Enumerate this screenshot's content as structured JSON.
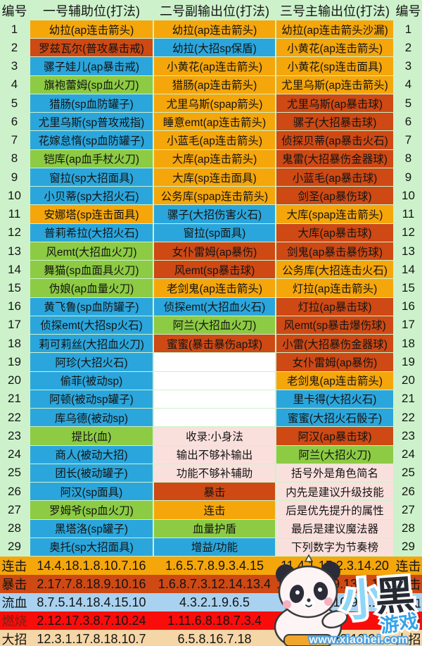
{
  "header": {
    "num_left": "编号",
    "col1": "一号辅助位(打法)",
    "col2": "二号副输出位(打法)",
    "col3": "三号主输出位(打法)",
    "num_right": "编号"
  },
  "colors": {
    "orange": "#F5A60B",
    "red": "#CE4914",
    "blue": "#2BA6DC",
    "green": "#8CCB43",
    "pink": "#FAE0DD",
    "white": "#FFFFFF",
    "lightblue": "#A9D2F0",
    "firered": "#F90D0B",
    "tan": "#F5D6A6",
    "page_bg": "#CDF2CB",
    "text": "#141414",
    "burn_label": "#7A2012"
  },
  "rows": [
    {
      "n": "1",
      "cells": [
        {
          "t": "幼拉(ap连击箭头)",
          "c": "orange"
        },
        {
          "t": "幼拉(ap连击箭头)",
          "c": "orange"
        },
        {
          "t": "幼拉(ap连击箭头沙漏)",
          "c": "orange"
        }
      ]
    },
    {
      "n": "2",
      "cells": [
        {
          "t": "罗兹瓦尔(普攻暴击戒)",
          "c": "red"
        },
        {
          "t": "幼拉(大招sp保盾)",
          "c": "blue"
        },
        {
          "t": "小黄花(ap连击箭头)",
          "c": "orange"
        }
      ]
    },
    {
      "n": "3",
      "cells": [
        {
          "t": "骡子娃儿(ap暴击戒)",
          "c": "blue"
        },
        {
          "t": "小黄花(ap连击箭头)",
          "c": "orange"
        },
        {
          "t": "小黄花(sp连击面具)",
          "c": "orange"
        }
      ]
    },
    {
      "n": "4",
      "cells": [
        {
          "t": "旗袍蕾姆(sp血火刀)",
          "c": "green"
        },
        {
          "t": "猎肠(ap连击箭头)",
          "c": "orange"
        },
        {
          "t": "尤里乌斯(ap连击箭头)",
          "c": "orange"
        }
      ]
    },
    {
      "n": "5",
      "cells": [
        {
          "t": "猎肠(sp血防罐子)",
          "c": "blue"
        },
        {
          "t": "尤里乌斯(spap箭头)",
          "c": "orange"
        },
        {
          "t": "尤里乌斯(ap暴击球)",
          "c": "red"
        }
      ]
    },
    {
      "n": "6",
      "cells": [
        {
          "t": "尤里乌斯(sp普攻戒指)",
          "c": "blue"
        },
        {
          "t": "睡意emt(ap连击箭头)",
          "c": "orange"
        },
        {
          "t": "骡子(大招暴击球)",
          "c": "red"
        }
      ]
    },
    {
      "n": "7",
      "cells": [
        {
          "t": "花嫁怠惰(sp血防罐子)",
          "c": "blue"
        },
        {
          "t": "小蓝毛(ap连击箭头)",
          "c": "orange"
        },
        {
          "t": "侦探贝蒂(ap暴击火石)",
          "c": "red"
        }
      ]
    },
    {
      "n": "8",
      "cells": [
        {
          "t": "铠库(ap血手杖火刀)",
          "c": "green"
        },
        {
          "t": "大库(ap连击箭头)",
          "c": "orange"
        },
        {
          "t": "鬼雷(大招暴伤金器球)",
          "c": "red"
        }
      ]
    },
    {
      "n": "9",
      "cells": [
        {
          "t": "窗拉(sp大招面具)",
          "c": "blue"
        },
        {
          "t": "大库(sp连击面具)",
          "c": "orange"
        },
        {
          "t": "小蓝毛(ap暴击球)",
          "c": "red"
        }
      ]
    },
    {
      "n": "10",
      "cells": [
        {
          "t": "小贝蒂(sp大招火石)",
          "c": "blue"
        },
        {
          "t": "公务库(spap连击箭头)",
          "c": "orange"
        },
        {
          "t": "剑圣(ap暴伤球)",
          "c": "red"
        }
      ]
    },
    {
      "n": "11",
      "cells": [
        {
          "t": "安娜塔(sp连击面具)",
          "c": "orange"
        },
        {
          "t": "骡子(大招伤害火石)",
          "c": "blue"
        },
        {
          "t": "大库(spap连击箭头)",
          "c": "orange"
        }
      ]
    },
    {
      "n": "12",
      "cells": [
        {
          "t": "普莉希拉(大招火石)",
          "c": "blue"
        },
        {
          "t": "窗拉(sp面具)",
          "c": "blue"
        },
        {
          "t": "大库(ap暴击球)",
          "c": "red"
        }
      ]
    },
    {
      "n": "13",
      "cells": [
        {
          "t": "风emt(大招血火刀)",
          "c": "green"
        },
        {
          "t": "女仆雷姆(ap暴伤)",
          "c": "red"
        },
        {
          "t": "剑鬼(ap暴击暴伤球)",
          "c": "red"
        }
      ]
    },
    {
      "n": "14",
      "cells": [
        {
          "t": "舞猫(sp血面具火刀)",
          "c": "green"
        },
        {
          "t": "风emt(sp暴击球)",
          "c": "red"
        },
        {
          "t": "公务库(大招连击火石)",
          "c": "orange"
        }
      ]
    },
    {
      "n": "15",
      "cells": [
        {
          "t": "伪娘(ap血量火刀)",
          "c": "green"
        },
        {
          "t": "老剑鬼(ap连击箭头)",
          "c": "orange"
        },
        {
          "t": "灯拉(ap连击箭头)",
          "c": "orange"
        }
      ]
    },
    {
      "n": "16",
      "cells": [
        {
          "t": "黄飞鲁(sp血防罐子)",
          "c": "blue"
        },
        {
          "t": "侦探emt(大招血火石)",
          "c": "blue"
        },
        {
          "t": "灯拉(ap暴击球)",
          "c": "red"
        }
      ]
    },
    {
      "n": "17",
      "cells": [
        {
          "t": "侦探emt(大招sp火石)",
          "c": "blue"
        },
        {
          "t": "阿兰(大招血火刀)",
          "c": "green"
        },
        {
          "t": "风emt(sp暴击爆伤球)",
          "c": "red"
        }
      ]
    },
    {
      "n": "18",
      "cells": [
        {
          "t": "莉可莉丝(大招血火刀)",
          "c": "blue"
        },
        {
          "t": "蜜蜜(暴击暴伤ap球)",
          "c": "red"
        },
        {
          "t": "小雷(大招暴伤金器球)",
          "c": "red"
        }
      ]
    },
    {
      "n": "19",
      "cells": [
        {
          "t": "阿珍(大招火石)",
          "c": "blue"
        },
        {
          "t": "",
          "c": "white"
        },
        {
          "t": "女仆雷姆(ap暴伤)",
          "c": "red"
        }
      ]
    },
    {
      "n": "20",
      "cells": [
        {
          "t": "偷菲(被动sp)",
          "c": "blue"
        },
        {
          "t": "",
          "c": "white"
        },
        {
          "t": "老剑鬼(ap连击箭头)",
          "c": "orange"
        }
      ]
    },
    {
      "n": "21",
      "cells": [
        {
          "t": "阿顿(被动sp罐子)",
          "c": "blue"
        },
        {
          "t": "",
          "c": "white"
        },
        {
          "t": "里卡得(大招火石)",
          "c": "blue"
        }
      ]
    },
    {
      "n": "22",
      "cells": [
        {
          "t": "库乌德(被动sp)",
          "c": "blue"
        },
        {
          "t": "",
          "c": "white"
        },
        {
          "t": "蜜蜜(大招火石骰子)",
          "c": "blue"
        }
      ]
    },
    {
      "n": "23",
      "cells": [
        {
          "t": "提比(血)",
          "c": "green"
        },
        {
          "t": "收录:小身法",
          "c": "pink"
        },
        {
          "t": "阿汉(ap暴击球)",
          "c": "red"
        }
      ]
    },
    {
      "n": "24",
      "cells": [
        {
          "t": "商人(被动大招)",
          "c": "blue"
        },
        {
          "t": "输出不够补输出",
          "c": "pink"
        },
        {
          "t": "阿兰(大招火刀)",
          "c": "green"
        }
      ]
    },
    {
      "n": "25",
      "cells": [
        {
          "t": "团长(被动罐子)",
          "c": "blue"
        },
        {
          "t": "功能不够补辅助",
          "c": "pink"
        },
        {
          "t": "括号外是角色简名",
          "c": "pink"
        }
      ]
    },
    {
      "n": "26",
      "cells": [
        {
          "t": "阿汉(sp面具)",
          "c": "blue"
        },
        {
          "t": "暴击",
          "c": "red"
        },
        {
          "t": "内先是建议升级技能",
          "c": "pink"
        }
      ]
    },
    {
      "n": "27",
      "cells": [
        {
          "t": "罗姆爷(sp血火刀)",
          "c": "green"
        },
        {
          "t": "连击",
          "c": "orange"
        },
        {
          "t": "后是优先提升的属性",
          "c": "pink"
        }
      ]
    },
    {
      "n": "28",
      "cells": [
        {
          "t": "黑塔洛(sp罐子)",
          "c": "blue"
        },
        {
          "t": "血量护盾",
          "c": "green"
        },
        {
          "t": "最后是建议魔法器",
          "c": "pink"
        }
      ]
    },
    {
      "n": "29",
      "cells": [
        {
          "t": "奥托(sp大招面具)",
          "c": "blue"
        },
        {
          "t": "增益/功能",
          "c": "blue"
        },
        {
          "t": "下列数字为节奏榜",
          "c": "pink"
        }
      ]
    }
  ],
  "summary": [
    {
      "label": "连击",
      "c": "orange",
      "label_color": "#141414",
      "values": [
        "14.4.18.1.8.10.7.16",
        "1.6.5.7.8.9.3.4.15",
        "11.4.1.15.2.3.14.20"
      ]
    },
    {
      "label": "暴击",
      "c": "red",
      "label_color": "#141414",
      "values": [
        "2.17.7.8.18.9.10.16",
        "1.6.8.7.3.12.14.13.4",
        "12.7.10.8.9.13.5.16.18"
      ]
    },
    {
      "label": "流血",
      "c": "lightblue",
      "label_color": "#141414",
      "values": [
        "8.7.5.14.18.4.15.10",
        "4.3.2.1.9.6.5",
        "2.3.12.1.10.9.8.13"
      ]
    },
    {
      "label": "燃烧",
      "c": "firered",
      "label_color": "#7A2012",
      "values": [
        "2.12.17.3.8.7.10.24",
        "1.11.6.8.18.7.3.4",
        ""
      ]
    },
    {
      "label": "大招",
      "c": "tan",
      "label_color": "#141414",
      "values": [
        "12.3.1.17.8.18.10.7",
        "6.5.8.16.7.18",
        "8.9.12.22.10.2"
      ]
    }
  ],
  "watermark": {
    "brand_char1": "小",
    "brand_char2": "黑",
    "brand_sub": "游戏",
    "url": "www.xiaohei.com"
  }
}
